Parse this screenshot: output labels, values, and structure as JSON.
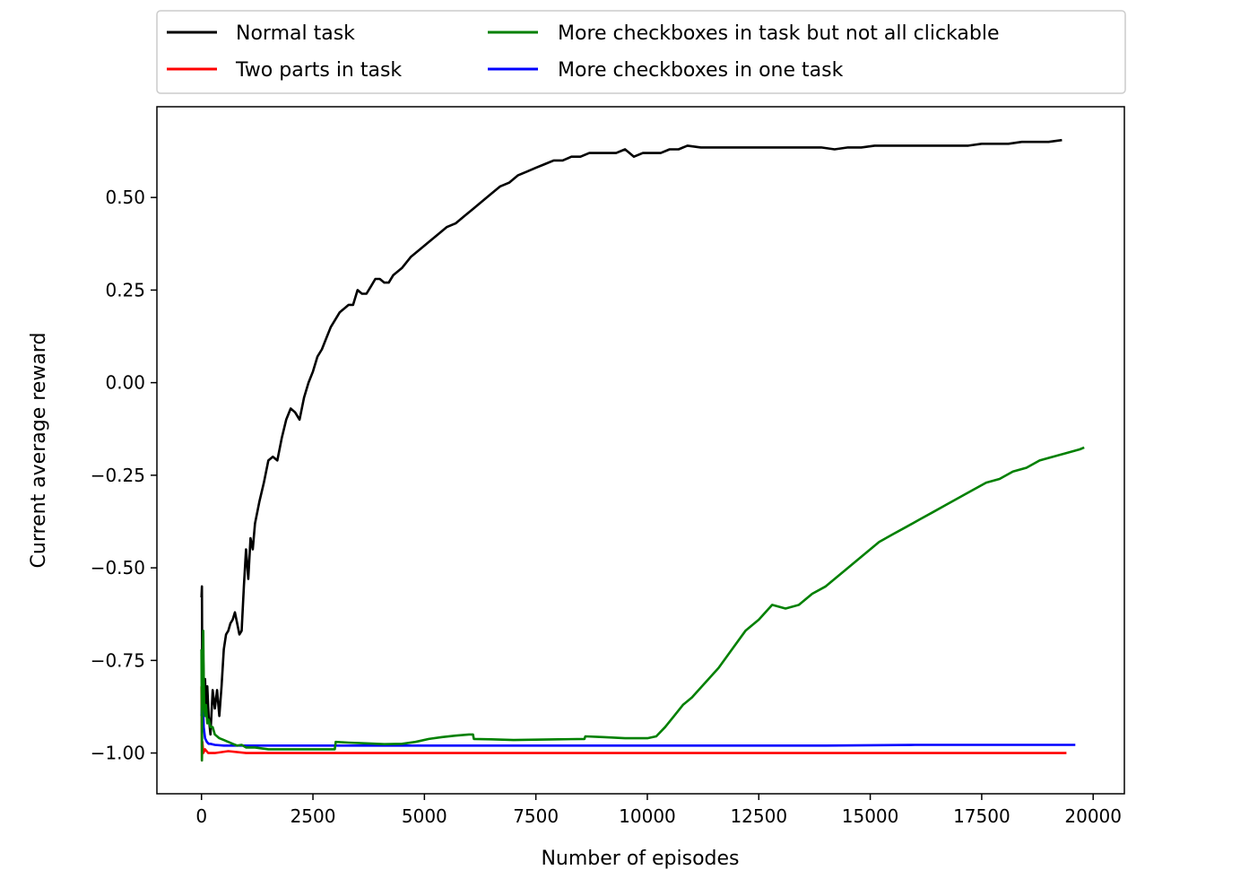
{
  "chart_data": {
    "type": "line",
    "xlabel": "Number of episodes",
    "ylabel": "Current average reward",
    "xlim": [
      -1000,
      20700
    ],
    "ylim": [
      -1.11,
      0.745
    ],
    "xticks": [
      0,
      2500,
      5000,
      7500,
      10000,
      12500,
      15000,
      17500,
      20000
    ],
    "yticks": [
      0.5,
      0.25,
      0.0,
      -0.25,
      -0.5,
      -0.75,
      -1.0
    ],
    "xtick_labels": [
      "0",
      "2500",
      "5000",
      "7500",
      "10000",
      "12500",
      "15000",
      "17500",
      "20000"
    ],
    "ytick_labels": [
      "0.50",
      "0.25",
      "0.00",
      "−0.25",
      "−0.50",
      "−0.75",
      "−1.00"
    ],
    "grid": false,
    "legend_position": "top-outside",
    "series": [
      {
        "name": "Normal task",
        "color": "#000000",
        "x": [
          0,
          10,
          20,
          40,
          60,
          80,
          100,
          130,
          160,
          200,
          250,
          300,
          350,
          400,
          450,
          500,
          550,
          600,
          650,
          700,
          750,
          800,
          850,
          900,
          950,
          1000,
          1050,
          1100,
          1150,
          1200,
          1300,
          1400,
          1500,
          1600,
          1700,
          1800,
          1900,
          2000,
          2100,
          2200,
          2300,
          2400,
          2500,
          2600,
          2700,
          2800,
          2900,
          3000,
          3100,
          3200,
          3300,
          3400,
          3500,
          3600,
          3700,
          3800,
          3900,
          4000,
          4100,
          4200,
          4300,
          4400,
          4500,
          4700,
          4900,
          5100,
          5300,
          5500,
          5700,
          5900,
          6100,
          6300,
          6500,
          6700,
          6900,
          7100,
          7300,
          7500,
          7700,
          7900,
          8100,
          8300,
          8500,
          8700,
          8900,
          9100,
          9300,
          9500,
          9600,
          9700,
          9900,
          10100,
          10300,
          10500,
          10700,
          10900,
          11200,
          11500,
          11800,
          12100,
          12400,
          12700,
          13000,
          13300,
          13600,
          13900,
          14200,
          14500,
          14800,
          15100,
          15400,
          15700,
          16000,
          16300,
          16600,
          16900,
          17200,
          17500,
          17800,
          18100,
          18400,
          18700,
          19000,
          19300
        ],
        "values": [
          -0.58,
          -0.55,
          -0.9,
          -0.75,
          -0.85,
          -0.8,
          -0.88,
          -0.82,
          -0.9,
          -0.95,
          -0.83,
          -0.88,
          -0.83,
          -0.9,
          -0.82,
          -0.72,
          -0.68,
          -0.67,
          -0.65,
          -0.64,
          -0.62,
          -0.65,
          -0.68,
          -0.67,
          -0.55,
          -0.45,
          -0.53,
          -0.42,
          -0.45,
          -0.38,
          -0.32,
          -0.27,
          -0.21,
          -0.2,
          -0.21,
          -0.15,
          -0.1,
          -0.07,
          -0.08,
          -0.1,
          -0.04,
          0.0,
          0.03,
          0.07,
          0.09,
          0.12,
          0.15,
          0.17,
          0.19,
          0.2,
          0.21,
          0.21,
          0.25,
          0.24,
          0.24,
          0.26,
          0.28,
          0.28,
          0.27,
          0.27,
          0.29,
          0.3,
          0.31,
          0.34,
          0.36,
          0.38,
          0.4,
          0.42,
          0.43,
          0.45,
          0.47,
          0.49,
          0.51,
          0.53,
          0.54,
          0.56,
          0.57,
          0.58,
          0.59,
          0.6,
          0.6,
          0.61,
          0.61,
          0.62,
          0.62,
          0.62,
          0.62,
          0.63,
          0.62,
          0.61,
          0.62,
          0.62,
          0.62,
          0.63,
          0.63,
          0.64,
          0.635,
          0.635,
          0.635,
          0.635,
          0.635,
          0.635,
          0.635,
          0.635,
          0.635,
          0.635,
          0.63,
          0.635,
          0.635,
          0.64,
          0.64,
          0.64,
          0.64,
          0.64,
          0.64,
          0.64,
          0.64,
          0.645,
          0.645,
          0.645,
          0.65,
          0.65,
          0.65,
          0.655
        ]
      },
      {
        "name": "Two parts in task",
        "color": "#ff0000",
        "x": [
          0,
          10,
          20,
          40,
          80,
          150,
          300,
          600,
          1000,
          2000,
          4000,
          8000,
          12000,
          16000,
          19000,
          19400
        ],
        "values": [
          -0.82,
          -1.02,
          -0.97,
          -1.0,
          -0.99,
          -1.0,
          -1.0,
          -0.995,
          -1.0,
          -1.0,
          -1.0,
          -1.0,
          -1.0,
          -1.0,
          -1.0,
          -1.0
        ]
      },
      {
        "name": "More checkboxes in task but not all clickable",
        "color": "#008000",
        "x": [
          0,
          10,
          20,
          30,
          40,
          50,
          60,
          80,
          100,
          130,
          160,
          200,
          250,
          300,
          350,
          400,
          500,
          600,
          700,
          800,
          900,
          1000,
          1200,
          1500,
          1800,
          2100,
          2400,
          2700,
          2990,
          3010,
          3300,
          3700,
          4100,
          4500,
          4800,
          5100,
          5400,
          5700,
          6000,
          6090,
          6110,
          6500,
          7000,
          7500,
          8000,
          8590,
          8610,
          9000,
          9500,
          10000,
          10200,
          10400,
          10600,
          10800,
          11000,
          11300,
          11600,
          11900,
          12200,
          12500,
          12800,
          13100,
          13400,
          13700,
          14000,
          14300,
          14600,
          14900,
          15200,
          15500,
          15800,
          16100,
          16400,
          16700,
          17000,
          17300,
          17600,
          17900,
          18200,
          18500,
          18800,
          19100,
          19400,
          19700,
          19800
        ],
        "values": [
          -0.72,
          -1.02,
          -0.8,
          -0.76,
          -0.67,
          -0.8,
          -0.87,
          -0.9,
          -0.87,
          -0.92,
          -0.91,
          -0.93,
          -0.93,
          -0.95,
          -0.955,
          -0.96,
          -0.965,
          -0.97,
          -0.975,
          -0.98,
          -0.978,
          -0.985,
          -0.985,
          -0.99,
          -0.99,
          -0.99,
          -0.99,
          -0.99,
          -0.99,
          -0.97,
          -0.972,
          -0.974,
          -0.976,
          -0.975,
          -0.97,
          -0.962,
          -0.957,
          -0.953,
          -0.95,
          -0.95,
          -0.962,
          -0.963,
          -0.965,
          -0.964,
          -0.963,
          -0.962,
          -0.955,
          -0.957,
          -0.96,
          -0.96,
          -0.955,
          -0.93,
          -0.9,
          -0.87,
          -0.85,
          -0.81,
          -0.77,
          -0.72,
          -0.67,
          -0.64,
          -0.6,
          -0.61,
          -0.6,
          -0.57,
          -0.55,
          -0.52,
          -0.49,
          -0.46,
          -0.43,
          -0.41,
          -0.39,
          -0.37,
          -0.35,
          -0.33,
          -0.31,
          -0.29,
          -0.27,
          -0.26,
          -0.24,
          -0.23,
          -0.21,
          -0.2,
          -0.19,
          -0.18,
          -0.175
        ]
      },
      {
        "name": "More checkboxes in one task",
        "color": "#0000ff",
        "x": [
          0,
          10,
          20,
          30,
          50,
          80,
          120,
          160,
          200,
          300,
          500,
          1000,
          3000,
          6000,
          9000,
          12000,
          14000,
          16000,
          18000,
          19600
        ],
        "values": [
          -0.9,
          -0.87,
          -0.86,
          -0.85,
          -0.93,
          -0.96,
          -0.97,
          -0.975,
          -0.975,
          -0.978,
          -0.98,
          -0.98,
          -0.98,
          -0.98,
          -0.98,
          -0.98,
          -0.98,
          -0.978,
          -0.978,
          -0.978
        ]
      }
    ]
  }
}
